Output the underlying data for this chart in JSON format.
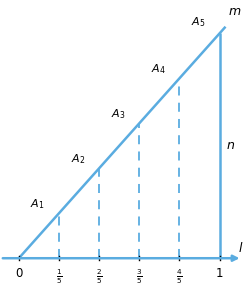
{
  "line_color": "#5aace0",
  "dashed_color": "#5aace0",
  "bg_color": "#ffffff",
  "x_ticks": [
    0.0,
    0.2,
    0.4,
    0.6,
    0.8,
    1.0
  ],
  "points_x": [
    0.2,
    0.4,
    0.6,
    0.8,
    1.0
  ],
  "point_labels": [
    "A_1",
    "A_2",
    "A_3",
    "A_4",
    "A_5"
  ],
  "label_l": "$l$",
  "label_m": "$m$",
  "label_n": "$n$",
  "slope": 5.0,
  "x_min": -0.08,
  "x_max": 1.12,
  "y_min": -0.4,
  "y_max": 5.6,
  "figsize": [
    2.47,
    2.9
  ],
  "dpi": 100
}
